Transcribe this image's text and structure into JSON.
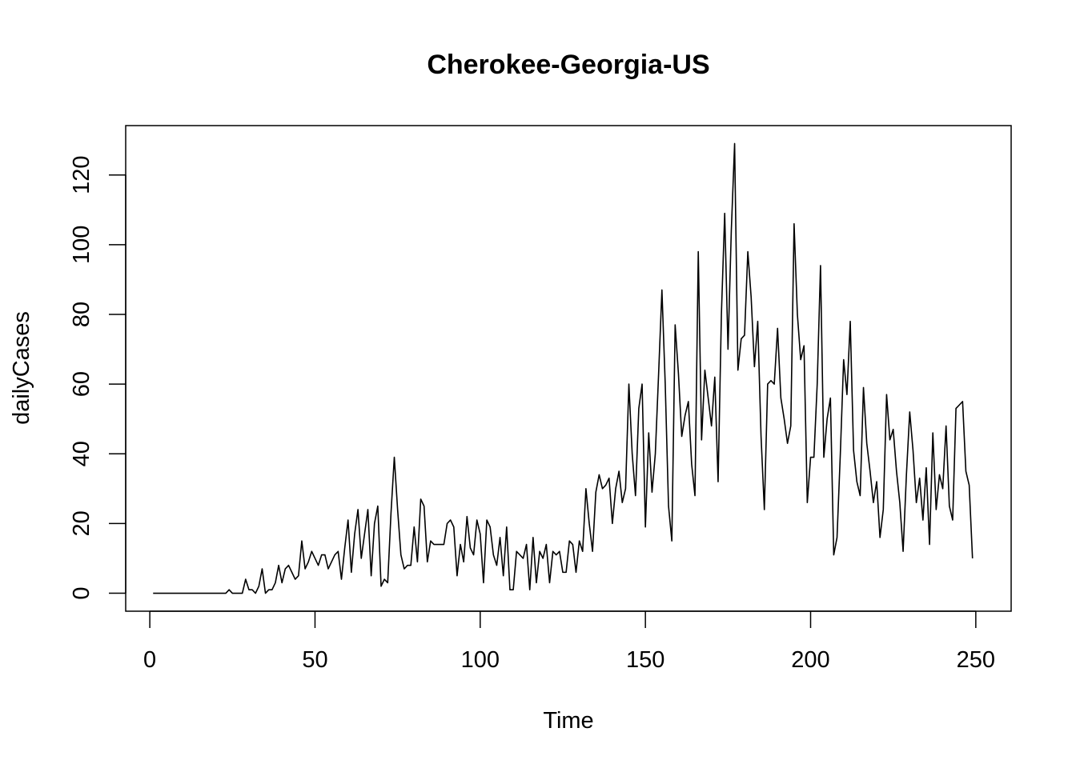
{
  "chart_data": {
    "type": "line",
    "title": "Cherokee-Georgia-US",
    "xlabel": "Time",
    "ylabel": "dailyCases",
    "xlim": [
      -7.3,
      260.7
    ],
    "ylim": [
      -5.16,
      134.16
    ],
    "x_ticks": [
      0,
      50,
      100,
      150,
      200,
      250
    ],
    "y_ticks": [
      0,
      20,
      40,
      60,
      80,
      100,
      120
    ],
    "grid": false,
    "line_color": "#000000",
    "series": [
      {
        "x_start": 1,
        "values": [
          0,
          0,
          0,
          0,
          0,
          0,
          0,
          0,
          0,
          0,
          0,
          0,
          0,
          0,
          0,
          0,
          0,
          0,
          0,
          0,
          0,
          0,
          0,
          1,
          0,
          0,
          0,
          0,
          4,
          1,
          1,
          0,
          2,
          7,
          0,
          1,
          1,
          3,
          8,
          3,
          7,
          8,
          6,
          4,
          5,
          15,
          7,
          9,
          12,
          10,
          8,
          11,
          11,
          7,
          9,
          11,
          12,
          4,
          13,
          21,
          6,
          17,
          24,
          10,
          17,
          24,
          5,
          20,
          25,
          2,
          4,
          3,
          23,
          39,
          24,
          11,
          7,
          8,
          8,
          19,
          9,
          27,
          25,
          9,
          15,
          14,
          14,
          14,
          14,
          20,
          21,
          19,
          5,
          14,
          9,
          22,
          13,
          11,
          21,
          17,
          3,
          21,
          19,
          11,
          8,
          16,
          5,
          19,
          1,
          1,
          12,
          11,
          10,
          14,
          1,
          16,
          3,
          12,
          10,
          14,
          3,
          12,
          11,
          12,
          6,
          6,
          15,
          14,
          6,
          15,
          12,
          30,
          20,
          12,
          29,
          34,
          30,
          31,
          33,
          20,
          30,
          35,
          26,
          30,
          60,
          40,
          28,
          53,
          60,
          19,
          46,
          29,
          40,
          63,
          87,
          60,
          25,
          15,
          77,
          63,
          45,
          51,
          55,
          37,
          28,
          98,
          44,
          64,
          56,
          48,
          62,
          32,
          80,
          109,
          70,
          104,
          129,
          64,
          73,
          74,
          98,
          85,
          65,
          78,
          45,
          24,
          60,
          61,
          60,
          76,
          56,
          50,
          43,
          48,
          106,
          80,
          67,
          71,
          26,
          39,
          39,
          60,
          94,
          39,
          50,
          56,
          11,
          16,
          40,
          67,
          57,
          78,
          41,
          32,
          28,
          59,
          43,
          35,
          26,
          32,
          16,
          24,
          57,
          44,
          47,
          35,
          26,
          12,
          34,
          52,
          41,
          26,
          33,
          21,
          36,
          14,
          46,
          24,
          34,
          30,
          48,
          25,
          21,
          53,
          54,
          55,
          35,
          31,
          10
        ]
      }
    ]
  }
}
